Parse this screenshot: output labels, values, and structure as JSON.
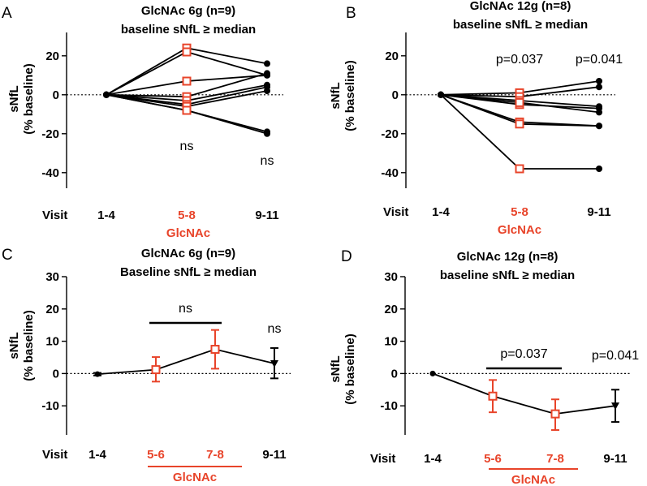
{
  "colors": {
    "highlight": "#e8442a",
    "black": "#000000"
  },
  "x_axis_title": "Visit",
  "treatment_label": "GlcNAc",
  "chart_data": [
    {
      "panel": "A",
      "type": "line",
      "title": [
        "GlcNAc 6g (n=9)",
        "baseline sNfL ≥ median"
      ],
      "ylabel": [
        "sNfL",
        "(% baseline)"
      ],
      "ylim": [
        -48,
        32
      ],
      "yticks": [
        20,
        0,
        -20,
        -40
      ],
      "categories": [
        "1-4",
        "5-8",
        "9-11"
      ],
      "highlight_index": 1,
      "annotations": [
        {
          "index": 1,
          "text": "ns"
        },
        {
          "index": 2,
          "text": "ns"
        }
      ],
      "series": [
        {
          "values": [
            0,
            24,
            16
          ]
        },
        {
          "values": [
            0,
            22,
            10
          ]
        },
        {
          "values": [
            0,
            7,
            10
          ]
        },
        {
          "values": [
            0,
            -1,
            11
          ]
        },
        {
          "values": [
            0,
            -3,
            5
          ]
        },
        {
          "values": [
            0,
            -5,
            4
          ]
        },
        {
          "values": [
            0,
            -6,
            2
          ]
        },
        {
          "values": [
            0,
            -8,
            -19
          ]
        },
        {
          "values": [
            0,
            -8,
            -20
          ]
        }
      ]
    },
    {
      "panel": "B",
      "type": "line",
      "title": [
        "GlcNAc 12g (n=8)",
        "baseline sNfL ≥ median"
      ],
      "ylabel": [
        "sNfL",
        "(% baseline)"
      ],
      "ylim": [
        -48,
        32
      ],
      "yticks": [
        20,
        0,
        -20,
        -40
      ],
      "categories": [
        "1-4",
        "5-8",
        "9-11"
      ],
      "highlight_index": 1,
      "annotations": [
        {
          "index": 1,
          "text": "p=0.037"
        },
        {
          "index": 2,
          "text": "p=0.041"
        }
      ],
      "series": [
        {
          "values": [
            0,
            1,
            7
          ]
        },
        {
          "values": [
            0,
            -1,
            4
          ]
        },
        {
          "values": [
            0,
            -3,
            -6
          ]
        },
        {
          "values": [
            0,
            -5,
            -7
          ]
        },
        {
          "values": [
            0,
            -4,
            -9
          ]
        },
        {
          "values": [
            0,
            -14,
            -16
          ]
        },
        {
          "values": [
            0,
            -15,
            -16
          ]
        },
        {
          "values": [
            0,
            -38,
            -38
          ]
        }
      ]
    },
    {
      "panel": "C",
      "type": "line",
      "title": [
        "GlcNAc 6g (n=9)",
        "Baseline sNfL ≥ median"
      ],
      "ylabel": [
        "sNfL",
        "(% baseline)"
      ],
      "ylim": [
        -19,
        30
      ],
      "yticks": [
        30,
        20,
        10,
        0,
        -10
      ],
      "categories": [
        "1-4",
        "5-6",
        "7-8",
        "9-11"
      ],
      "highlight_indices": [
        1,
        2
      ],
      "mean": [
        -0.2,
        1.2,
        7.5,
        3.1
      ],
      "error": [
        [
          -0.6,
          0.2
        ],
        [
          -2.5,
          5.1
        ],
        [
          1.5,
          13.5
        ],
        [
          -1.5,
          7.9
        ]
      ],
      "annotations": [
        {
          "bracket": [
            1,
            2
          ],
          "text": "ns"
        },
        {
          "index": 3,
          "text": "ns"
        }
      ]
    },
    {
      "panel": "D",
      "type": "line",
      "title": [
        "GlcNAc 12g (n=8)",
        "baseline sNfL ≥ median"
      ],
      "ylabel": [
        "sNfL",
        "(% baseline)"
      ],
      "ylim": [
        -19,
        30
      ],
      "yticks": [
        30,
        20,
        10,
        0,
        -10
      ],
      "categories": [
        "1-4",
        "5-6",
        "7-8",
        "9-11"
      ],
      "highlight_indices": [
        1,
        2
      ],
      "mean": [
        0,
        -7,
        -12.5,
        -10
      ],
      "error": [
        [
          0,
          0
        ],
        [
          -12,
          -2
        ],
        [
          -17.5,
          -8
        ],
        [
          -15,
          -5
        ]
      ],
      "annotations": [
        {
          "bracket": [
            1,
            2
          ],
          "text": "p=0.037"
        },
        {
          "index": 3,
          "text": "p=0.041"
        }
      ]
    }
  ]
}
